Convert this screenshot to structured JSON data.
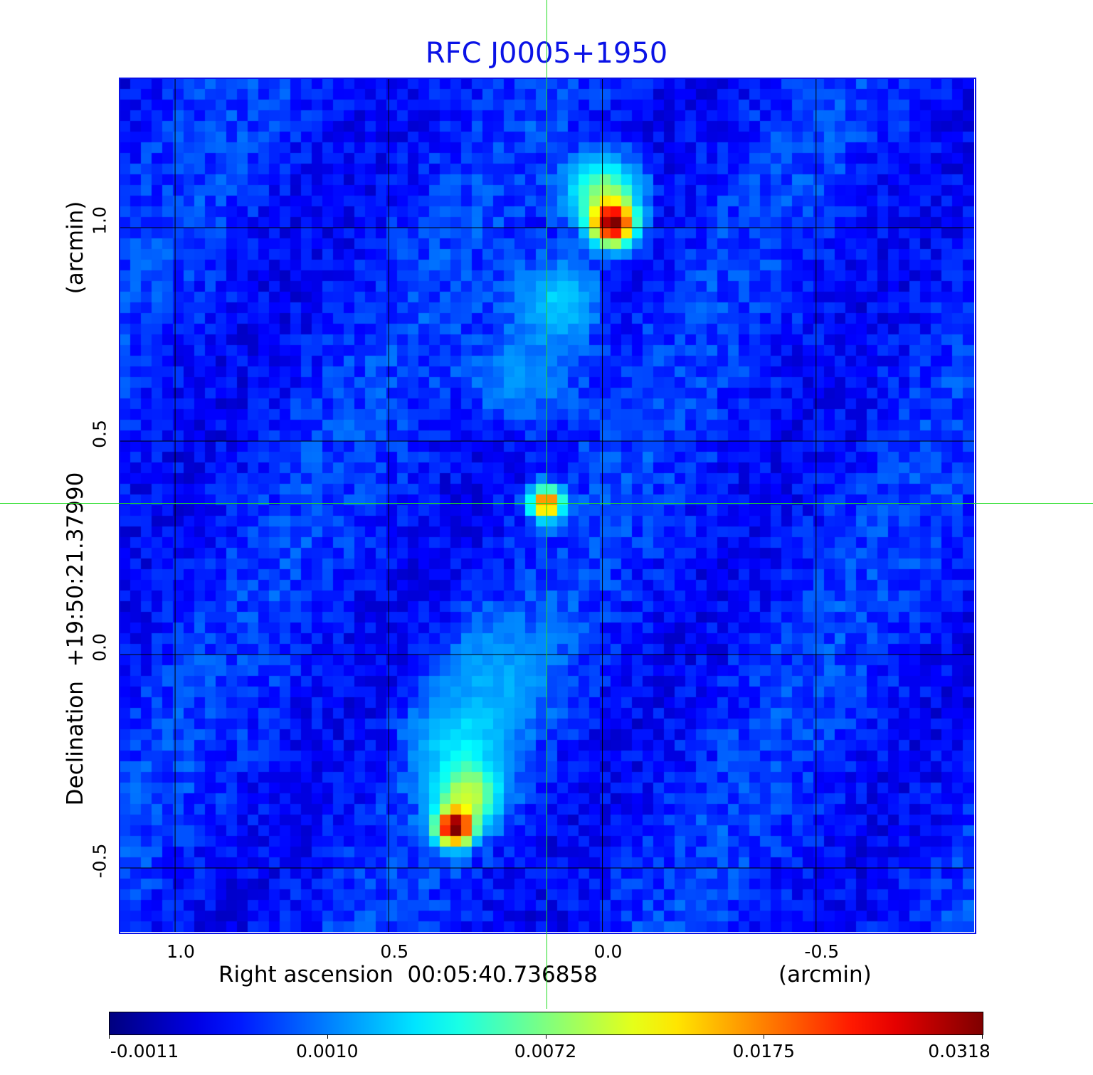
{
  "chart_data": {
    "type": "heatmap",
    "title": "RFC J0005+1950",
    "xlabel": "Right ascension  00:05:40.736858",
    "xunit": "(arcmin)",
    "ylabel": "Declination  +19:50:21.37990",
    "yunit": "(arcmin)",
    "xlim": [
      1.13,
      -0.87
    ],
    "ylim": [
      -0.65,
      1.35
    ],
    "x_ticks": [
      {
        "value": 1.0,
        "label": "1.0"
      },
      {
        "value": 0.5,
        "label": "0.5"
      },
      {
        "value": 0.0,
        "label": "0.0"
      },
      {
        "value": -0.5,
        "label": "-0.5"
      }
    ],
    "y_ticks": [
      {
        "value": 1.0,
        "label": "1.0"
      },
      {
        "value": 0.5,
        "label": "0.5"
      },
      {
        "value": 0.0,
        "label": "0.0"
      },
      {
        "value": -0.5,
        "label": "-0.5"
      }
    ],
    "grid": true,
    "grid_color": "#000000",
    "colormap": "jet",
    "colorbar": {
      "placement": "bottom",
      "ticks": [
        {
          "value": -0.0011,
          "label": "-0.0011"
        },
        {
          "value": 0.001,
          "label": "0.0010"
        },
        {
          "value": 0.0072,
          "label": "0.0072"
        },
        {
          "value": 0.0175,
          "label": "0.0175"
        },
        {
          "value": 0.0318,
          "label": "0.0318"
        }
      ]
    },
    "crosshair": {
      "x": 0.13,
      "y": 0.355,
      "color": "#22dd22"
    },
    "sources": [
      {
        "x": 0.13,
        "y": 0.355,
        "peak": 0.02
      },
      {
        "x": -0.025,
        "y": 1.01,
        "peak": 0.03
      },
      {
        "x": 0.345,
        "y": -0.405,
        "peak": 0.032
      }
    ],
    "background_level": 0.0002,
    "frame_color": "#0a12e6",
    "title_color": "#0a12e6"
  }
}
